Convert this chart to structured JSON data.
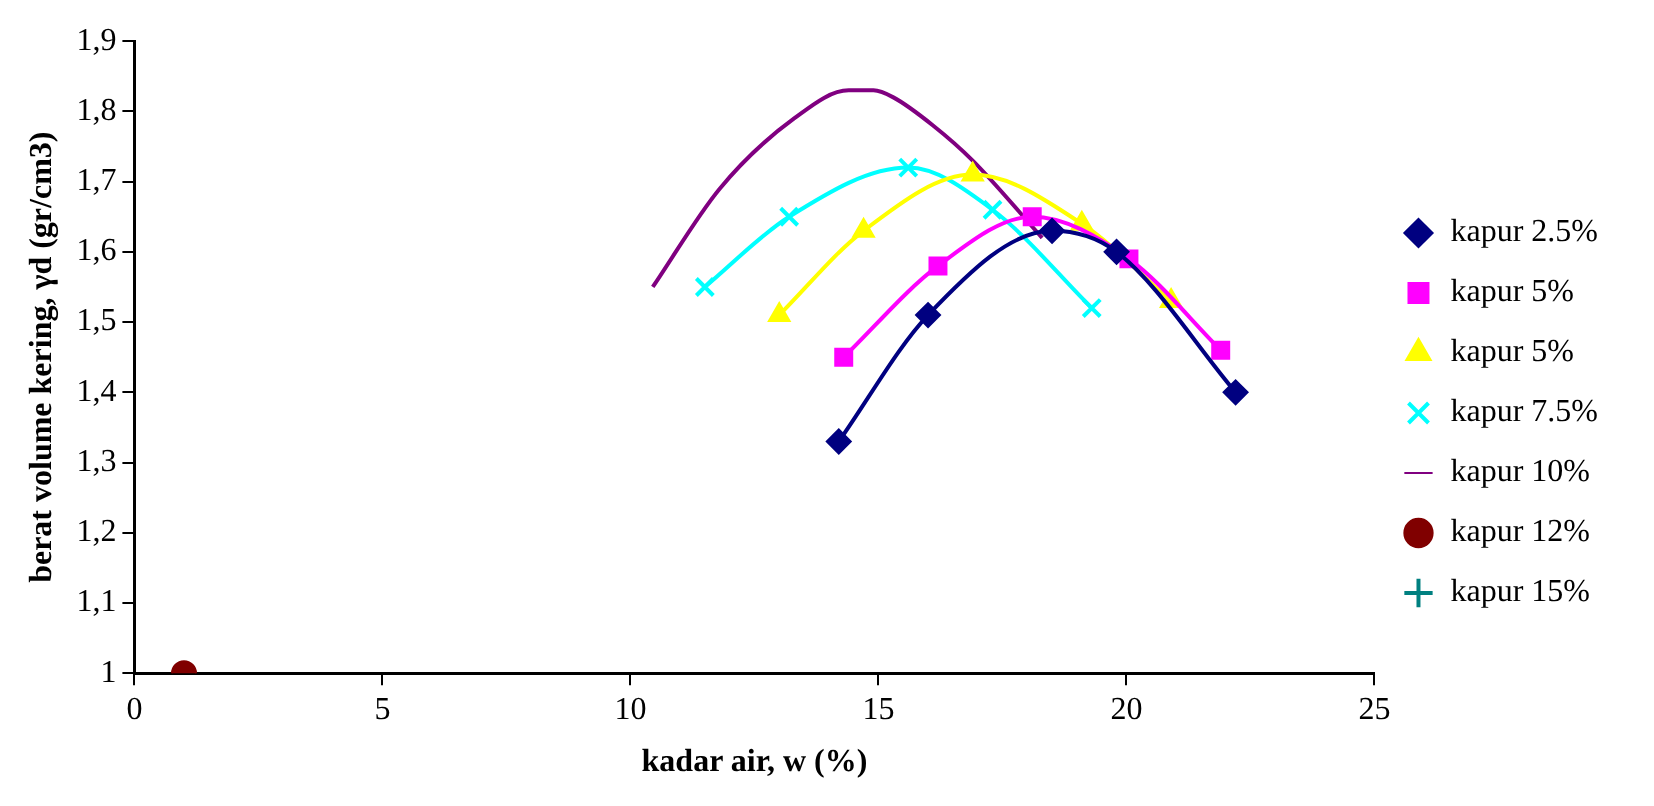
{
  "chart_data": {
    "type": "line",
    "xlabel": "kadar air, w (%)",
    "ylabel": "berat volume kering, γd (gr/cm3)",
    "xlim": [
      0,
      25
    ],
    "xticks": [
      0,
      5,
      10,
      15,
      20,
      25
    ],
    "ylim": [
      1,
      1.9
    ],
    "yticks": [
      1,
      {
        "value": 1.1,
        "label": "1,1"
      },
      {
        "value": 1.2,
        "label": "1,2"
      },
      {
        "value": 1.3,
        "label": "1,3"
      },
      {
        "value": 1.4,
        "label": "1,4"
      },
      {
        "value": 1.5,
        "label": "1,5"
      },
      {
        "value": 1.6,
        "label": "1,6"
      },
      {
        "value": 1.7,
        "label": "1,7"
      },
      {
        "value": 1.8,
        "label": "1,8"
      },
      {
        "value": 1.9,
        "label": "1,9"
      }
    ],
    "grid": false,
    "legend": "right",
    "line_style": "solid",
    "series": [
      {
        "name": "kapur 2.5%",
        "color": "#000080",
        "marker": "diamond",
        "x": [
          14.2,
          16.0,
          18.5,
          19.8,
          22.2
        ],
        "values": [
          1.33,
          1.51,
          1.63,
          1.6,
          1.4
        ]
      },
      {
        "name": "kapur 5%",
        "color": "#ff00ff",
        "marker": "square",
        "x": [
          14.3,
          16.2,
          18.1,
          20.05,
          21.9
        ],
        "values": [
          1.45,
          1.58,
          1.65,
          1.59,
          1.46
        ]
      },
      {
        "name": "kapur 5%",
        "color": "#ffff00",
        "marker": "triangle",
        "x": [
          13.0,
          14.7,
          16.9,
          19.1,
          20.9
        ],
        "values": [
          1.51,
          1.63,
          1.71,
          1.64,
          1.53
        ]
      },
      {
        "name": "kapur 7.5%",
        "color": "#00ffff",
        "marker": "cross",
        "x": [
          11.5,
          13.2,
          15.6,
          17.3,
          19.3
        ],
        "values": [
          1.55,
          1.65,
          1.72,
          1.66,
          1.52
        ]
      },
      {
        "name": "kapur 10%",
        "color": "#800080",
        "marker": "none",
        "x": [
          10.45,
          11.8,
          13.3,
          14.4,
          14.9,
          15.3,
          16.1,
          16.9,
          18.3
        ],
        "values": [
          1.55,
          1.69,
          1.79,
          1.83,
          1.83,
          1.82,
          1.78,
          1.73,
          1.62
        ]
      },
      {
        "name": "kapur 12%",
        "color": "#800000",
        "marker": "circle",
        "x": [
          1
        ],
        "values": [
          1
        ]
      },
      {
        "name": "kapur 15%",
        "color": "#008080",
        "marker": "plus"
      }
    ]
  }
}
